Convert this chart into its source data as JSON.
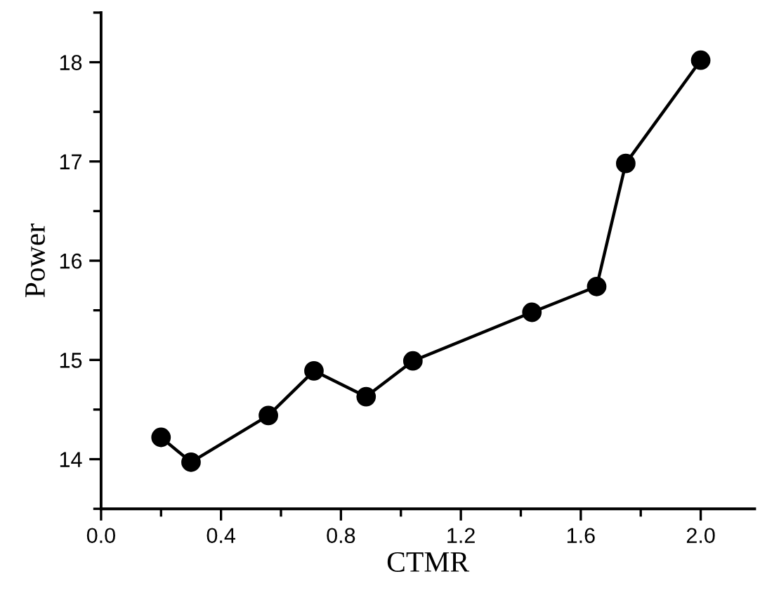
{
  "chart_data": {
    "type": "line",
    "xlabel": "CTMR",
    "ylabel": "Power",
    "x": [
      0.2,
      0.3,
      0.558,
      0.71,
      0.884,
      1.04,
      1.437,
      1.653,
      1.75,
      2.0
    ],
    "series": [
      {
        "color": "#000000",
        "values": [
          14.22,
          13.97,
          14.44,
          14.89,
          14.63,
          14.99,
          15.48,
          15.74,
          16.98,
          18.02
        ]
      }
    ],
    "xlim": [
      0,
      2.18
    ],
    "ylim": [
      13.5,
      18.5
    ],
    "xticks": [
      {
        "value": 0,
        "label": "0.0"
      },
      0.4,
      0.8,
      1.2,
      1.6,
      {
        "value": 2,
        "label": "2.0"
      }
    ],
    "yticks": [
      14,
      15,
      16,
      17,
      18
    ],
    "marker": "circle",
    "line_style": "solid",
    "grid": false,
    "legend": false
  }
}
